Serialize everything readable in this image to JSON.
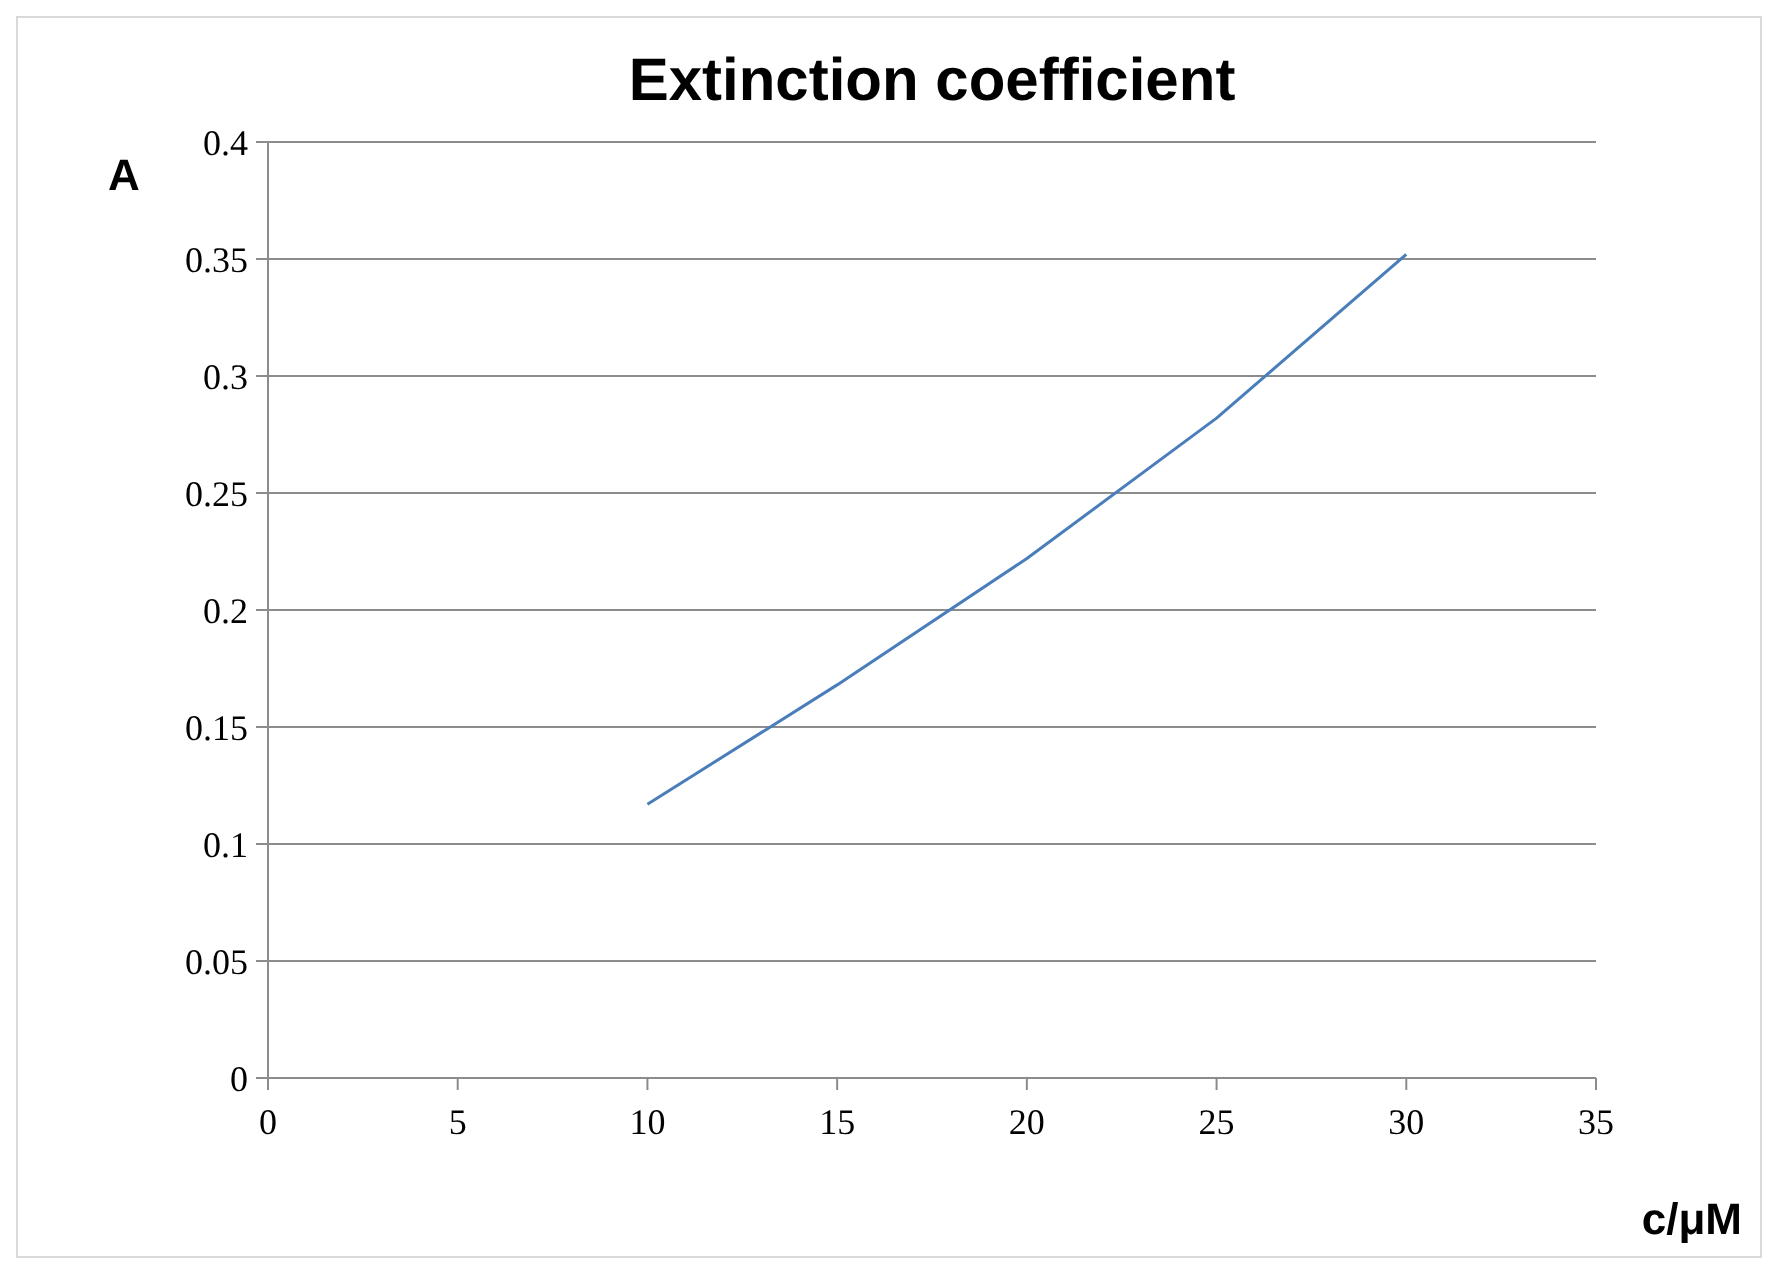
{
  "chart_data": {
    "type": "line",
    "title": "Extinction coefficient",
    "xlabel": "c/μM",
    "ylabel": "A",
    "series": [
      {
        "color": "#4a7ebb",
        "x": [
          10,
          15,
          20,
          25,
          30
        ],
        "values": [
          0.117,
          0.168,
          0.222,
          0.282,
          0.352
        ]
      }
    ],
    "xlim": [
      0,
      35
    ],
    "xticks": [
      0,
      5,
      10,
      15,
      20,
      25,
      30,
      35
    ],
    "ylim": [
      0,
      0.4
    ],
    "yticks": [
      0,
      0.05,
      0.1,
      0.15,
      0.2,
      0.25,
      0.3,
      0.35,
      0.4
    ],
    "grid": "y",
    "marker": "none",
    "line_style": "solid"
  }
}
